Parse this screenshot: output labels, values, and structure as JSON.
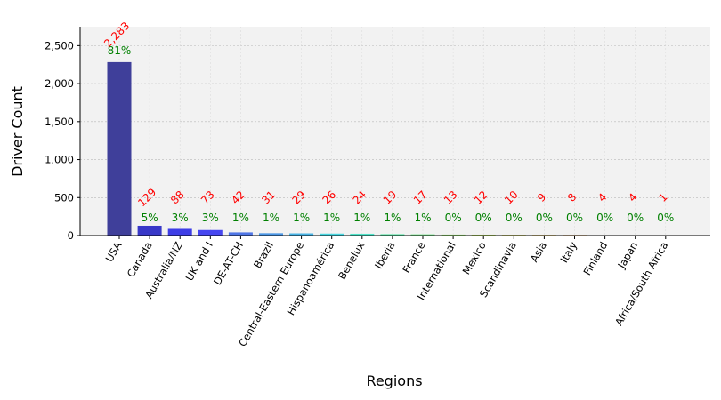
{
  "chart_data": {
    "type": "bar",
    "title": "",
    "xlabel": "Regions",
    "ylabel": "Driver Count",
    "ylim": [
      0,
      2750
    ],
    "yticks": [
      0,
      500,
      1000,
      1500,
      2000,
      2500
    ],
    "ytick_labels": [
      "0",
      "500",
      "1,000",
      "1,500",
      "2,000",
      "2,500"
    ],
    "grid": true,
    "categories": [
      "USA",
      "Canada",
      "Australia/NZ",
      "UK and I",
      "DE-AT-CH",
      "Brazil",
      "Central-Eastern Europe",
      "Hispanoamérica",
      "Benelux",
      "Iberia",
      "France",
      "International",
      "Mexico",
      "Scandinavia",
      "Asia",
      "Italy",
      "Finland",
      "Japan",
      "Africa/South Africa"
    ],
    "values": [
      2283,
      129,
      88,
      73,
      42,
      31,
      29,
      26,
      24,
      19,
      17,
      13,
      12,
      10,
      9,
      8,
      4,
      4,
      1
    ],
    "count_labels": [
      "2,283",
      "129",
      "88",
      "73",
      "42",
      "31",
      "29",
      "26",
      "24",
      "19",
      "17",
      "13",
      "12",
      "10",
      "9",
      "8",
      "4",
      "4",
      "1"
    ],
    "percent_labels": [
      "81%",
      "5%",
      "3%",
      "3%",
      "1%",
      "1%",
      "1%",
      "1%",
      "1%",
      "1%",
      "1%",
      "0%",
      "0%",
      "0%",
      "0%",
      "0%",
      "0%",
      "0%",
      "0%"
    ],
    "colors": [
      "#3f3f9a",
      "#3838c8",
      "#3d3de6",
      "#4646f0",
      "#4f76e6",
      "#4c97e6",
      "#48b4e6",
      "#48d6e0",
      "#4fe3c8",
      "#5ee6a8",
      "#7ee690",
      "#9ee678",
      "#bde068",
      "#d6d45c",
      "#e6c050",
      "#e6a048",
      "#e67a40",
      "#e65838",
      "#e63a30"
    ],
    "count_label_color": "#ff0000",
    "percent_label_color": "#008000",
    "background_color": "#f2f2f2"
  }
}
